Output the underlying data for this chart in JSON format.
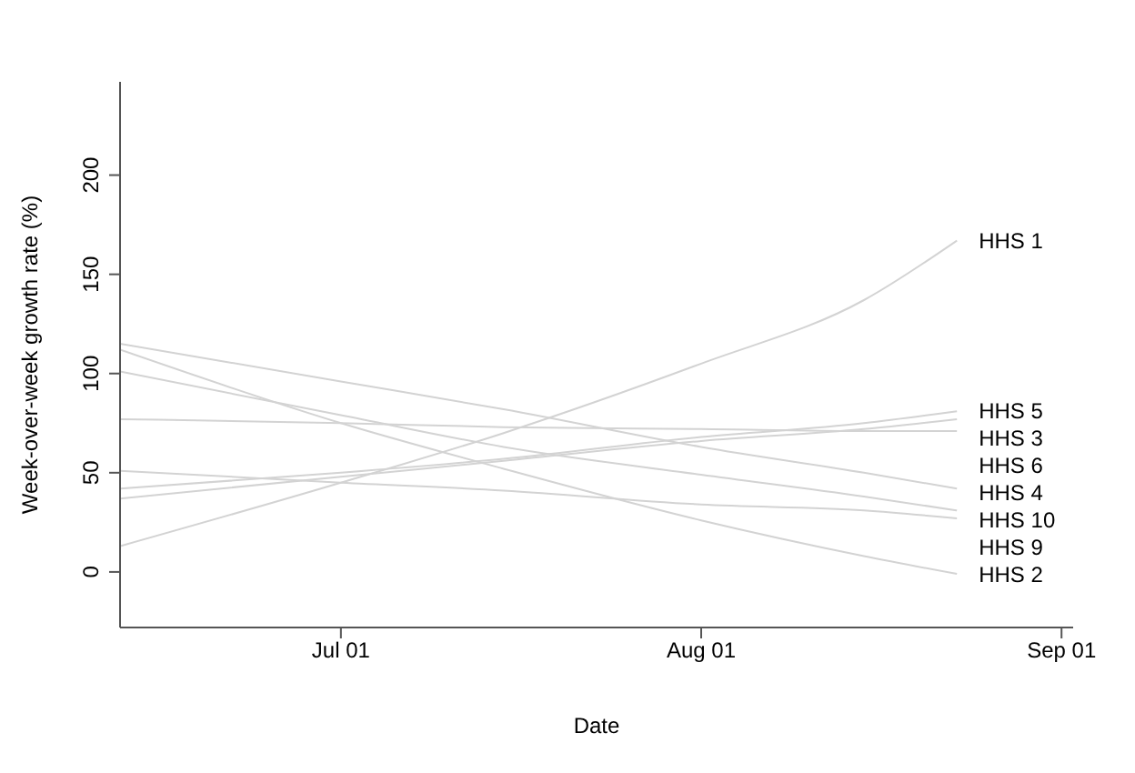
{
  "chart_data": {
    "type": "line",
    "xlabel": "Date",
    "ylabel": "Week-over-week growth rate (%)",
    "xlim": [
      "--06-12",
      "--09-02"
    ],
    "ylim": [
      -28,
      247
    ],
    "xticks": [
      {
        "value": "--07-01",
        "label": "Jul 01"
      },
      {
        "value": "--08-01",
        "label": "Aug 01"
      },
      {
        "value": "--09-01",
        "label": "Sep 01"
      }
    ],
    "yticks": [
      0,
      50,
      100,
      150,
      200
    ],
    "marker": "none",
    "line_style": "solid",
    "x": [
      "--06-12",
      "--07-01",
      "--07-15",
      "--08-01",
      "--08-15",
      "--08-23"
    ],
    "series": [
      {
        "name": "HHS 1",
        "color": "#d3d3d3",
        "values": [
          13,
          45,
          70,
          105,
          137,
          167
        ]
      },
      {
        "name": "HHS 2",
        "color": "#d3d3d3",
        "values": [
          112,
          75,
          52,
          26,
          8,
          -1
        ]
      },
      {
        "name": "HHS 3",
        "color": "#d3d3d3",
        "values": [
          37,
          48,
          56,
          66,
          72,
          77
        ]
      },
      {
        "name": "HHS 4",
        "color": "#d3d3d3",
        "values": [
          115,
          96,
          82,
          63,
          50,
          42
        ]
      },
      {
        "name": "HHS 5",
        "color": "#d3d3d3",
        "values": [
          42,
          50,
          57,
          68,
          75,
          81
        ]
      },
      {
        "name": "HHS 6",
        "color": "#d3d3d3",
        "values": [
          77,
          75,
          73,
          72,
          71,
          71
        ]
      },
      {
        "name": "HHS 9",
        "color": "#d3d3d3",
        "values": [
          51,
          45,
          41,
          34,
          31,
          27
        ]
      },
      {
        "name": "HHS 10",
        "color": "#d3d3d3",
        "values": [
          101,
          79,
          63,
          49,
          38,
          31
        ]
      }
    ]
  }
}
